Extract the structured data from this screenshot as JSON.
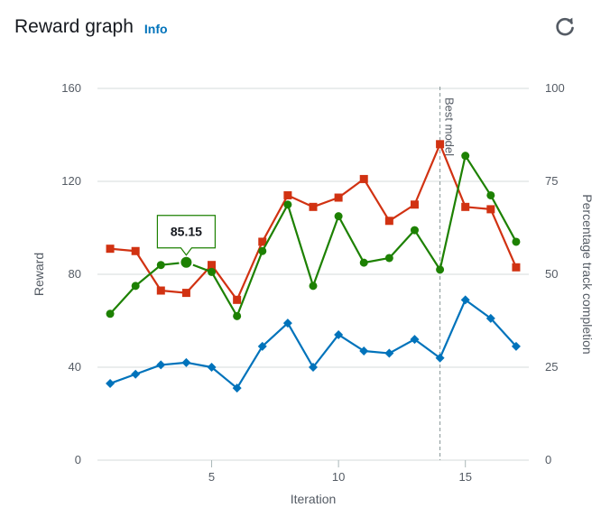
{
  "header": {
    "title": "Reward graph",
    "info_label": "Info",
    "refresh_icon": "refresh-icon"
  },
  "chart_data": {
    "type": "line",
    "xlabel": "Iteration",
    "ylabel": "Reward",
    "y2label": "Percentage track completion",
    "x": [
      1,
      2,
      3,
      4,
      5,
      6,
      7,
      8,
      9,
      10,
      11,
      12,
      13,
      14,
      15,
      16,
      17
    ],
    "xlim": [
      0.5,
      17.5
    ],
    "xticks": [
      5,
      10,
      15
    ],
    "ylim": [
      0,
      160
    ],
    "yticks": [
      0,
      40,
      80,
      120,
      160
    ],
    "y2lim": [
      0,
      100
    ],
    "y2ticks": [
      0,
      25,
      50,
      75,
      100
    ],
    "grid": true,
    "series": [
      {
        "color": "#d13212",
        "marker": "square",
        "axis": "left",
        "values": [
          91,
          90,
          73,
          72,
          84,
          69,
          94,
          114,
          109,
          113,
          121,
          103,
          110,
          136,
          109,
          108,
          83
        ]
      },
      {
        "color": "#1d8102",
        "marker": "circle",
        "axis": "left",
        "values": [
          63,
          75,
          84,
          85.15,
          81,
          62,
          90,
          110,
          75,
          105,
          85,
          87,
          99,
          82,
          131,
          114,
          94
        ]
      },
      {
        "color": "#0073bb",
        "marker": "diamond",
        "axis": "left",
        "values": [
          33,
          37,
          41,
          42,
          40,
          31,
          49,
          59,
          40,
          54,
          47,
          46,
          52,
          44,
          69,
          61,
          49
        ]
      }
    ],
    "annotation": {
      "x": 14,
      "label": "Best model"
    },
    "tooltip": {
      "x": 4,
      "series": 1,
      "label": "85.15"
    }
  }
}
